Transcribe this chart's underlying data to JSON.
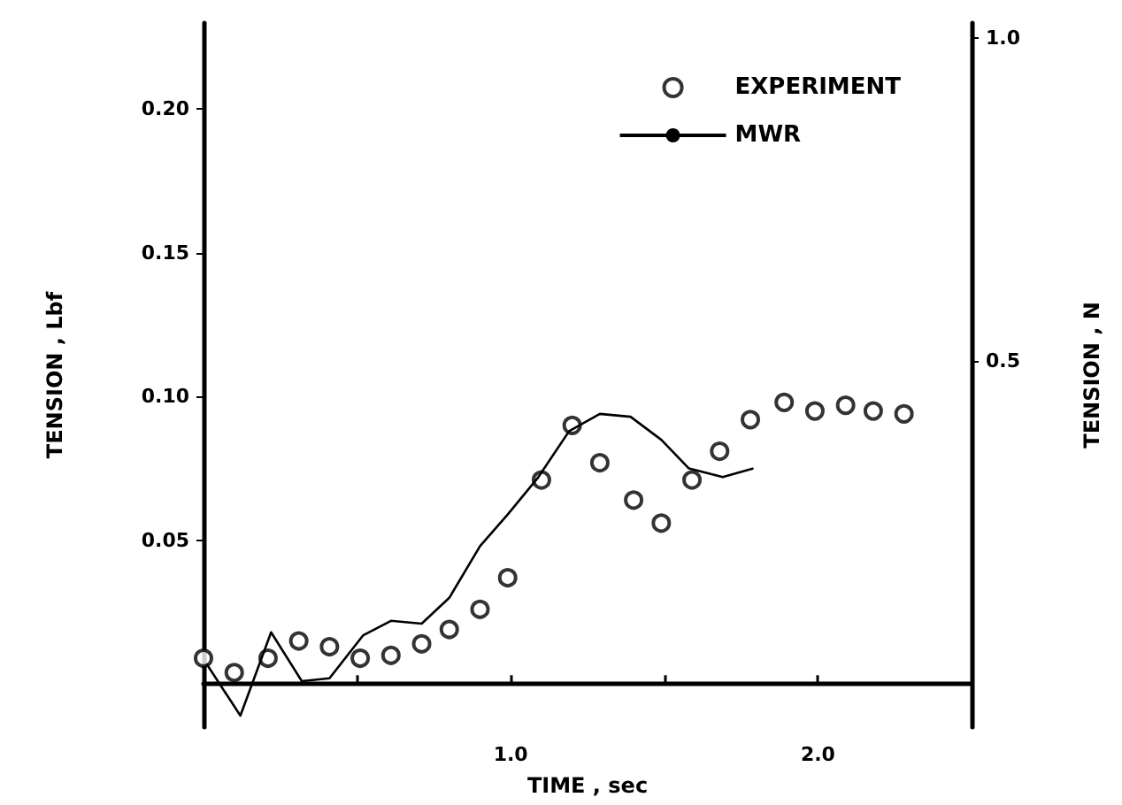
{
  "chart_data": {
    "type": "line",
    "xlabel": "TIME , sec",
    "ylabel": "TENSION , Lbf",
    "y2label": "TENSION , N",
    "xlim": [
      0,
      2.5
    ],
    "xticks": [
      {
        "value": 0.5,
        "label": null
      },
      {
        "value": 1,
        "label": "1.0"
      },
      {
        "value": 1.5,
        "label": null
      },
      {
        "value": 2,
        "label": "2.0"
      }
    ],
    "ylim": [
      -0.015,
      0.23
    ],
    "yticks": [
      0.05,
      {
        "value": 0.1,
        "label": "0.10"
      },
      0.15,
      {
        "value": 0.2,
        "label": "0.20"
      }
    ],
    "y2lim": [
      -0.067,
      1.023
    ],
    "y2ticks": [
      0.5,
      {
        "value": 1,
        "label": "1.0"
      }
    ],
    "legend": "top right",
    "grid": false,
    "series": [
      {
        "name": "EXPERIMENT",
        "type": "scatter",
        "marker": "circle",
        "color": "#000000",
        "x": [
          0.0,
          0.1,
          0.21,
          0.31,
          0.41,
          0.51,
          0.61,
          0.71,
          0.8,
          0.9,
          0.99,
          1.1,
          1.2,
          1.29,
          1.4,
          1.49,
          1.59,
          1.68,
          1.78,
          1.89,
          1.99,
          2.09,
          2.18,
          2.28
        ],
        "values": [
          0.009,
          0.004,
          0.009,
          0.015,
          0.013,
          0.009,
          0.01,
          0.014,
          0.019,
          0.026,
          0.037,
          0.071,
          0.09,
          0.077,
          0.064,
          0.056,
          0.071,
          0.081,
          0.092,
          0.098,
          0.095,
          0.097,
          0.095,
          0.094
        ]
      },
      {
        "name": "MWR",
        "marker": "none",
        "line_style": "solid",
        "color": "#000000",
        "x": [
          0.01,
          0.12,
          0.22,
          0.32,
          0.41,
          0.52,
          0.61,
          0.71,
          0.8,
          0.9,
          0.99,
          1.09,
          1.19,
          1.29,
          1.39,
          1.49,
          1.58,
          1.69,
          1.79
        ],
        "values": [
          0.007,
          -0.011,
          0.018,
          0.001,
          0.002,
          0.017,
          0.022,
          0.021,
          0.03,
          0.048,
          0.059,
          0.072,
          0.088,
          0.094,
          0.093,
          0.085,
          0.075,
          0.072,
          0.075
        ]
      }
    ]
  }
}
